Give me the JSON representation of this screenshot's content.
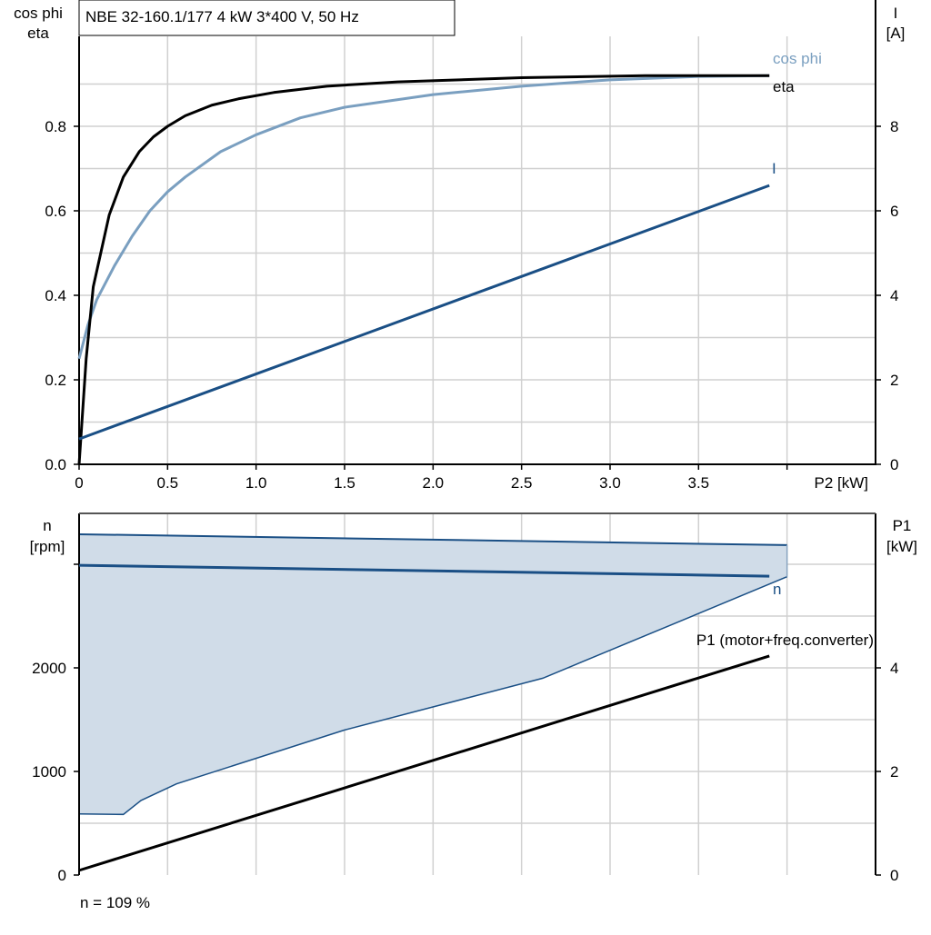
{
  "chart_data": [
    {
      "type": "line",
      "title": "NBE 32-160.1/177   4 kW   3*400 V, 50 Hz",
      "xlabel": "P2 [kW]",
      "ylabel_left": [
        "cos phi",
        "eta"
      ],
      "ylabel_right": [
        "I",
        "[A]"
      ],
      "xlim": [
        0,
        4.5
      ],
      "ylim_left": [
        0,
        1.0
      ],
      "ylim_right": [
        0,
        10
      ],
      "x_ticks": [
        "0",
        "0.5",
        "1.0",
        "1.5",
        "2.0",
        "2.5",
        "3.0",
        "3.5"
      ],
      "y_ticks_left": [
        "0.0",
        "0.2",
        "0.4",
        "0.6",
        "0.8"
      ],
      "y_ticks_right": [
        "0",
        "2",
        "4",
        "6",
        "8"
      ],
      "grid": true,
      "series": [
        {
          "name": "cos phi",
          "axis": "left",
          "color": "#7a9fc0",
          "x": [
            0,
            0.05,
            0.1,
            0.2,
            0.3,
            0.4,
            0.5,
            0.6,
            0.8,
            1.0,
            1.25,
            1.5,
            2.0,
            2.5,
            3.0,
            3.5,
            3.9
          ],
          "y": [
            0.25,
            0.33,
            0.39,
            0.47,
            0.54,
            0.6,
            0.645,
            0.68,
            0.74,
            0.78,
            0.82,
            0.845,
            0.875,
            0.895,
            0.91,
            0.918,
            0.92
          ]
        },
        {
          "name": "eta",
          "axis": "left",
          "color": "#000000",
          "x": [
            0,
            0.04,
            0.08,
            0.17,
            0.25,
            0.34,
            0.42,
            0.5,
            0.6,
            0.75,
            0.9,
            1.1,
            1.4,
            1.8,
            2.5,
            3.2,
            3.9
          ],
          "y": [
            0,
            0.25,
            0.42,
            0.59,
            0.68,
            0.74,
            0.775,
            0.8,
            0.825,
            0.85,
            0.865,
            0.88,
            0.895,
            0.905,
            0.915,
            0.92,
            0.92
          ]
        },
        {
          "name": "I",
          "axis": "right",
          "color": "#1a4f85",
          "x": [
            0,
            3.9
          ],
          "y": [
            0.6,
            6.6
          ]
        }
      ]
    },
    {
      "type": "area",
      "xlim": [
        0,
        4.5
      ],
      "ylabel_left": [
        "n",
        "[rpm]"
      ],
      "ylabel_right": [
        "P1",
        "[kW]"
      ],
      "ylim_left": [
        0,
        3500
      ],
      "ylim_right": [
        0,
        7
      ],
      "y_ticks_left": [
        "0",
        "1000",
        "2000"
      ],
      "y_ticks_right": [
        "0",
        "2",
        "4"
      ],
      "grid": true,
      "fill_color": "#d0dce8",
      "range_upper": {
        "x": [
          0,
          4.0
        ],
        "y": [
          3290,
          3185
        ]
      },
      "range_lower": {
        "x": [
          0,
          0.25,
          0.35,
          0.55,
          1.5,
          2.62,
          4.0
        ],
        "y": [
          590,
          585,
          720,
          880,
          1400,
          1900,
          2880
        ]
      },
      "series": [
        {
          "name": "n",
          "axis": "left",
          "color": "#1a4f85",
          "x": [
            0,
            3.9
          ],
          "y": [
            2990,
            2885
          ]
        },
        {
          "name": "P1 (motor+freq.converter)",
          "axis": "right",
          "color": "#000000",
          "x": [
            0,
            3.9
          ],
          "y": [
            0.09,
            4.23
          ]
        }
      ],
      "footnote": "n = 109 %"
    }
  ]
}
